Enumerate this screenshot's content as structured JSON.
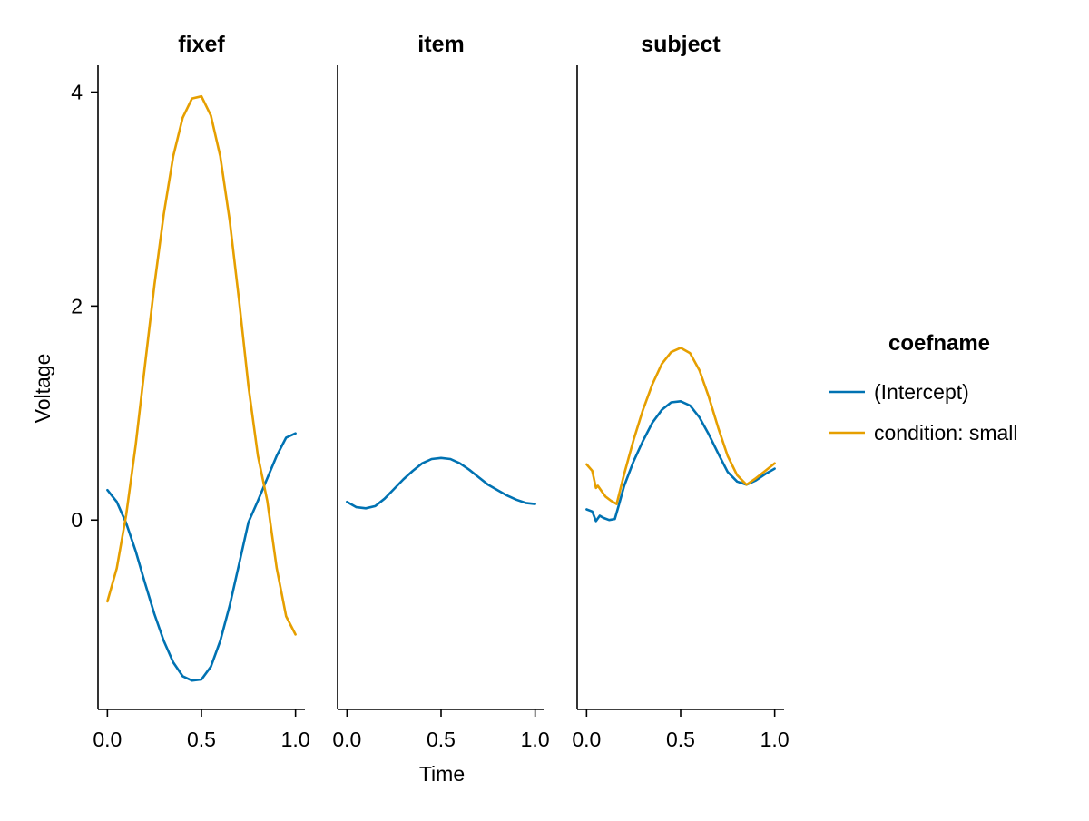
{
  "chart_data": {
    "type": "line",
    "layout": "faceted",
    "facet_variable": "group",
    "xlabel": "Time",
    "ylabel": "Voltage",
    "xlim": [
      -0.05,
      1.05
    ],
    "ylim": [
      -1.77,
      4.25
    ],
    "x_ticks": [
      0.0,
      0.5,
      1.0
    ],
    "x_tick_labels": [
      "0.0",
      "0.5",
      "1.0"
    ],
    "y_ticks": [
      0,
      2,
      4
    ],
    "y_tick_labels": [
      "0",
      "2",
      "4"
    ],
    "grid": false,
    "legend": {
      "title": "coefname",
      "placement": "right",
      "entries": [
        {
          "label": "(Intercept)",
          "color": "#0072B2"
        },
        {
          "label": "condition: small",
          "color": "#E69F00"
        }
      ]
    },
    "panels": [
      {
        "title": "fixef",
        "series": [
          {
            "name": "(Intercept)",
            "color": "#0072B2",
            "x": [
              0,
              0.05,
              0.1,
              0.15,
              0.2,
              0.25,
              0.3,
              0.35,
              0.4,
              0.45,
              0.5,
              0.55,
              0.6,
              0.65,
              0.7,
              0.75,
              0.8,
              0.85,
              0.9,
              0.95,
              1.0
            ],
            "y": [
              0.28,
              0.17,
              -0.03,
              -0.29,
              -0.59,
              -0.88,
              -1.13,
              -1.33,
              -1.46,
              -1.5,
              -1.49,
              -1.37,
              -1.13,
              -0.8,
              -0.41,
              -0.02,
              0.18,
              0.39,
              0.6,
              0.77,
              0.81
            ]
          },
          {
            "name": "condition: small",
            "color": "#E69F00",
            "x": [
              0,
              0.05,
              0.1,
              0.15,
              0.2,
              0.25,
              0.3,
              0.35,
              0.4,
              0.45,
              0.5,
              0.55,
              0.6,
              0.65,
              0.7,
              0.75,
              0.8,
              0.85,
              0.9,
              0.95,
              1.0
            ],
            "y": [
              -0.76,
              -0.45,
              0.05,
              0.7,
              1.45,
              2.2,
              2.86,
              3.4,
              3.76,
              3.94,
              3.96,
              3.78,
              3.4,
              2.8,
              2.05,
              1.25,
              0.6,
              0.18,
              -0.45,
              -0.9,
              -1.07
            ]
          }
        ]
      },
      {
        "title": "item",
        "series": [
          {
            "name": "(Intercept)",
            "color": "#0072B2",
            "x": [
              0,
              0.05,
              0.1,
              0.15,
              0.2,
              0.25,
              0.3,
              0.35,
              0.4,
              0.45,
              0.5,
              0.55,
              0.6,
              0.65,
              0.7,
              0.75,
              0.8,
              0.85,
              0.9,
              0.95,
              1.0
            ],
            "y": [
              0.17,
              0.12,
              0.11,
              0.13,
              0.2,
              0.29,
              0.38,
              0.46,
              0.53,
              0.57,
              0.58,
              0.57,
              0.53,
              0.47,
              0.4,
              0.33,
              0.28,
              0.23,
              0.19,
              0.16,
              0.15
            ]
          }
        ]
      },
      {
        "title": "subject",
        "series": [
          {
            "name": "(Intercept)",
            "color": "#0072B2",
            "x": [
              0,
              0.03,
              0.05,
              0.07,
              0.09,
              0.12,
              0.15,
              0.17,
              0.2,
              0.25,
              0.3,
              0.35,
              0.4,
              0.45,
              0.5,
              0.55,
              0.6,
              0.65,
              0.7,
              0.75,
              0.8,
              0.85,
              0.9,
              0.95,
              1.0
            ],
            "y": [
              0.1,
              0.08,
              -0.01,
              0.04,
              0.02,
              0.0,
              0.01,
              0.13,
              0.32,
              0.55,
              0.74,
              0.91,
              1.03,
              1.1,
              1.11,
              1.07,
              0.96,
              0.8,
              0.62,
              0.45,
              0.36,
              0.33,
              0.37,
              0.43,
              0.48
            ]
          },
          {
            "name": "condition: small",
            "color": "#E69F00",
            "x": [
              0,
              0.03,
              0.05,
              0.06,
              0.08,
              0.1,
              0.13,
              0.16,
              0.2,
              0.25,
              0.3,
              0.35,
              0.4,
              0.45,
              0.5,
              0.55,
              0.6,
              0.65,
              0.7,
              0.75,
              0.8,
              0.85,
              0.9,
              0.95,
              1.0
            ],
            "y": [
              0.52,
              0.46,
              0.3,
              0.32,
              0.27,
              0.22,
              0.18,
              0.15,
              0.43,
              0.75,
              1.03,
              1.27,
              1.46,
              1.57,
              1.61,
              1.56,
              1.4,
              1.15,
              0.86,
              0.6,
              0.42,
              0.33,
              0.39,
              0.46,
              0.53
            ]
          }
        ]
      }
    ]
  }
}
